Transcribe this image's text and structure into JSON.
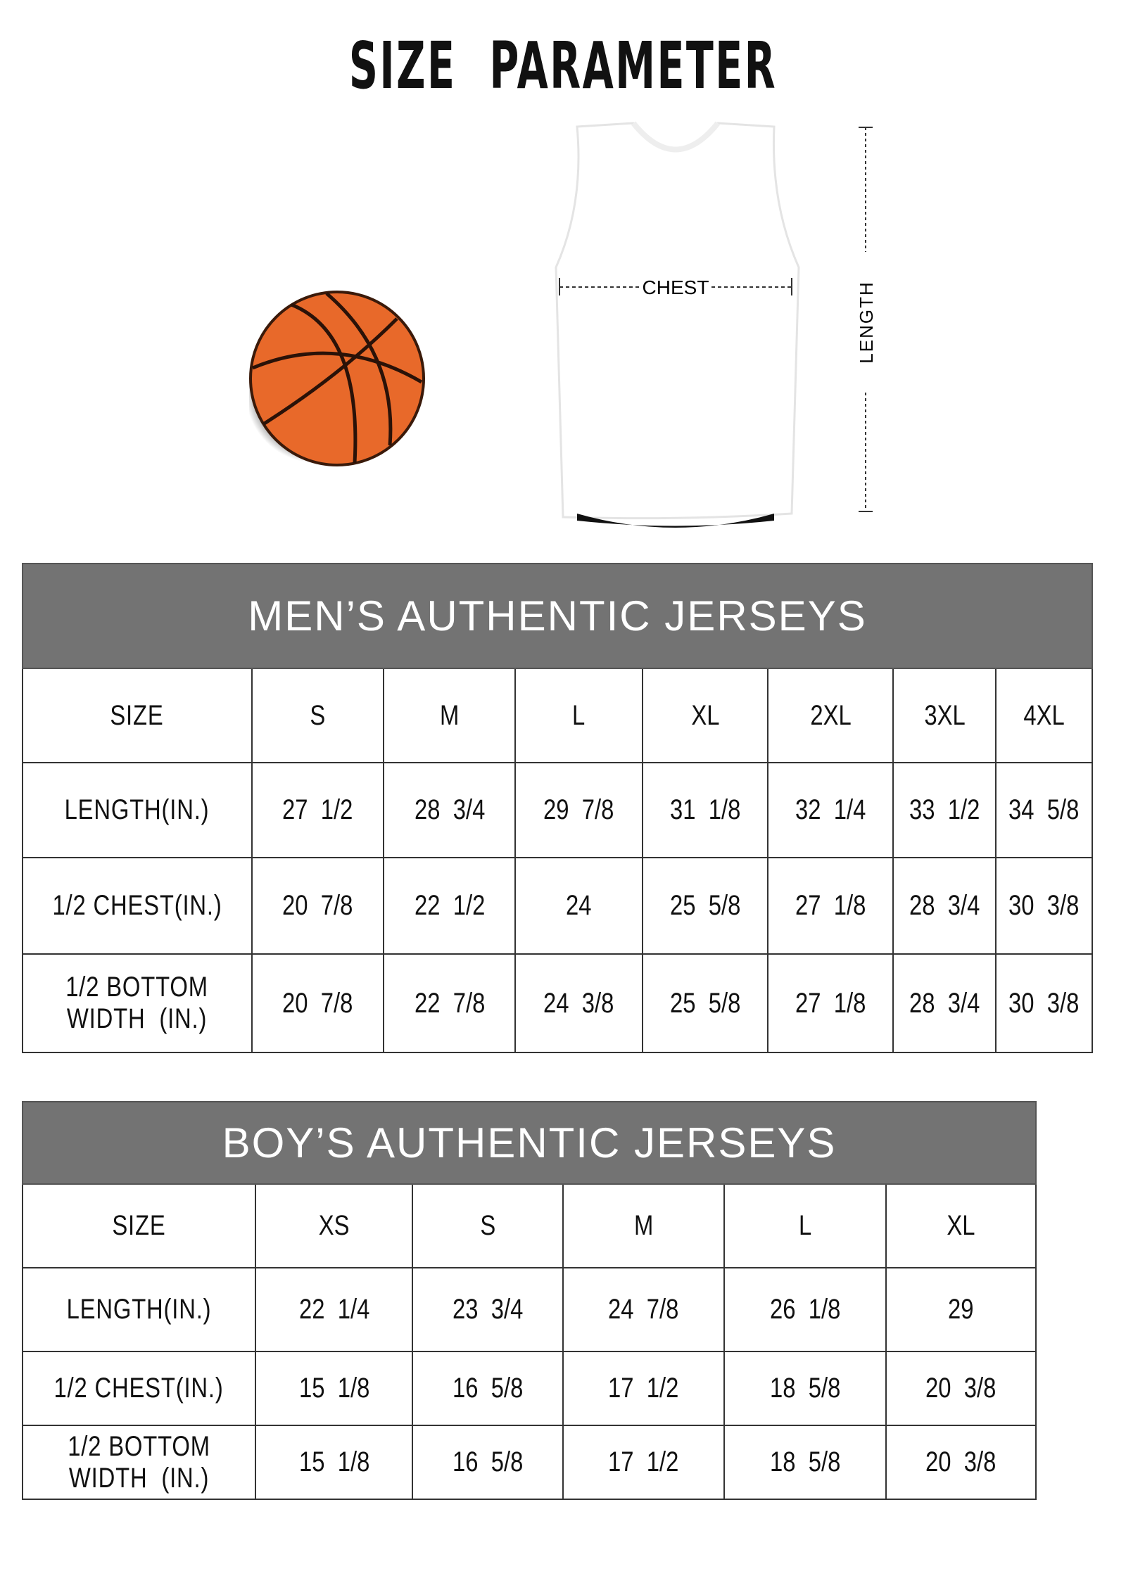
{
  "title": "SIZE  PARAMETER",
  "diagram": {
    "chest_label": "CHEST",
    "length_label": "LENGTH",
    "ball_color": "#e8692a",
    "header_color": "#737373"
  },
  "men": {
    "title": "MEN’S AUTHENTIC JERSEYS",
    "size_label": "SIZE",
    "sizes": [
      "S",
      "M",
      "L",
      "XL",
      "2XL",
      "3XL",
      "4XL"
    ],
    "rows": [
      {
        "label": "LENGTH(IN.)",
        "values": [
          "27  1/2",
          "28  3/4",
          "29  7/8",
          "31  1/8",
          "32  1/4",
          "33  1/2",
          "34  5/8"
        ]
      },
      {
        "label": "1/2 CHEST(IN.)",
        "values": [
          "20  7/8",
          "22  1/2",
          "24",
          "25  5/8",
          "27  1/8",
          "28  3/4",
          "30  3/8"
        ]
      },
      {
        "label": "1/2 BOTTOM\nWIDTH  (IN.)",
        "values": [
          "20  7/8",
          "22  7/8",
          "24  3/8",
          "25  5/8",
          "27  1/8",
          "28  3/4",
          "30  3/8"
        ]
      }
    ]
  },
  "boy": {
    "title": "BOY’S AUTHENTIC JERSEYS",
    "size_label": "SIZE",
    "sizes": [
      "XS",
      "S",
      "M",
      "L",
      "XL"
    ],
    "rows": [
      {
        "label": "LENGTH(IN.)",
        "values": [
          "22  1/4",
          "23  3/4",
          "24  7/8",
          "26  1/8",
          "29"
        ]
      },
      {
        "label": "1/2 CHEST(IN.)",
        "values": [
          "15  1/8",
          "16  5/8",
          "17  1/2",
          "18  5/8",
          "20  3/8"
        ]
      },
      {
        "label": "1/2 BOTTOM\nWIDTH  (IN.)",
        "values": [
          "15  1/8",
          "16  5/8",
          "17  1/2",
          "18  5/8",
          "20  3/8"
        ]
      }
    ]
  }
}
